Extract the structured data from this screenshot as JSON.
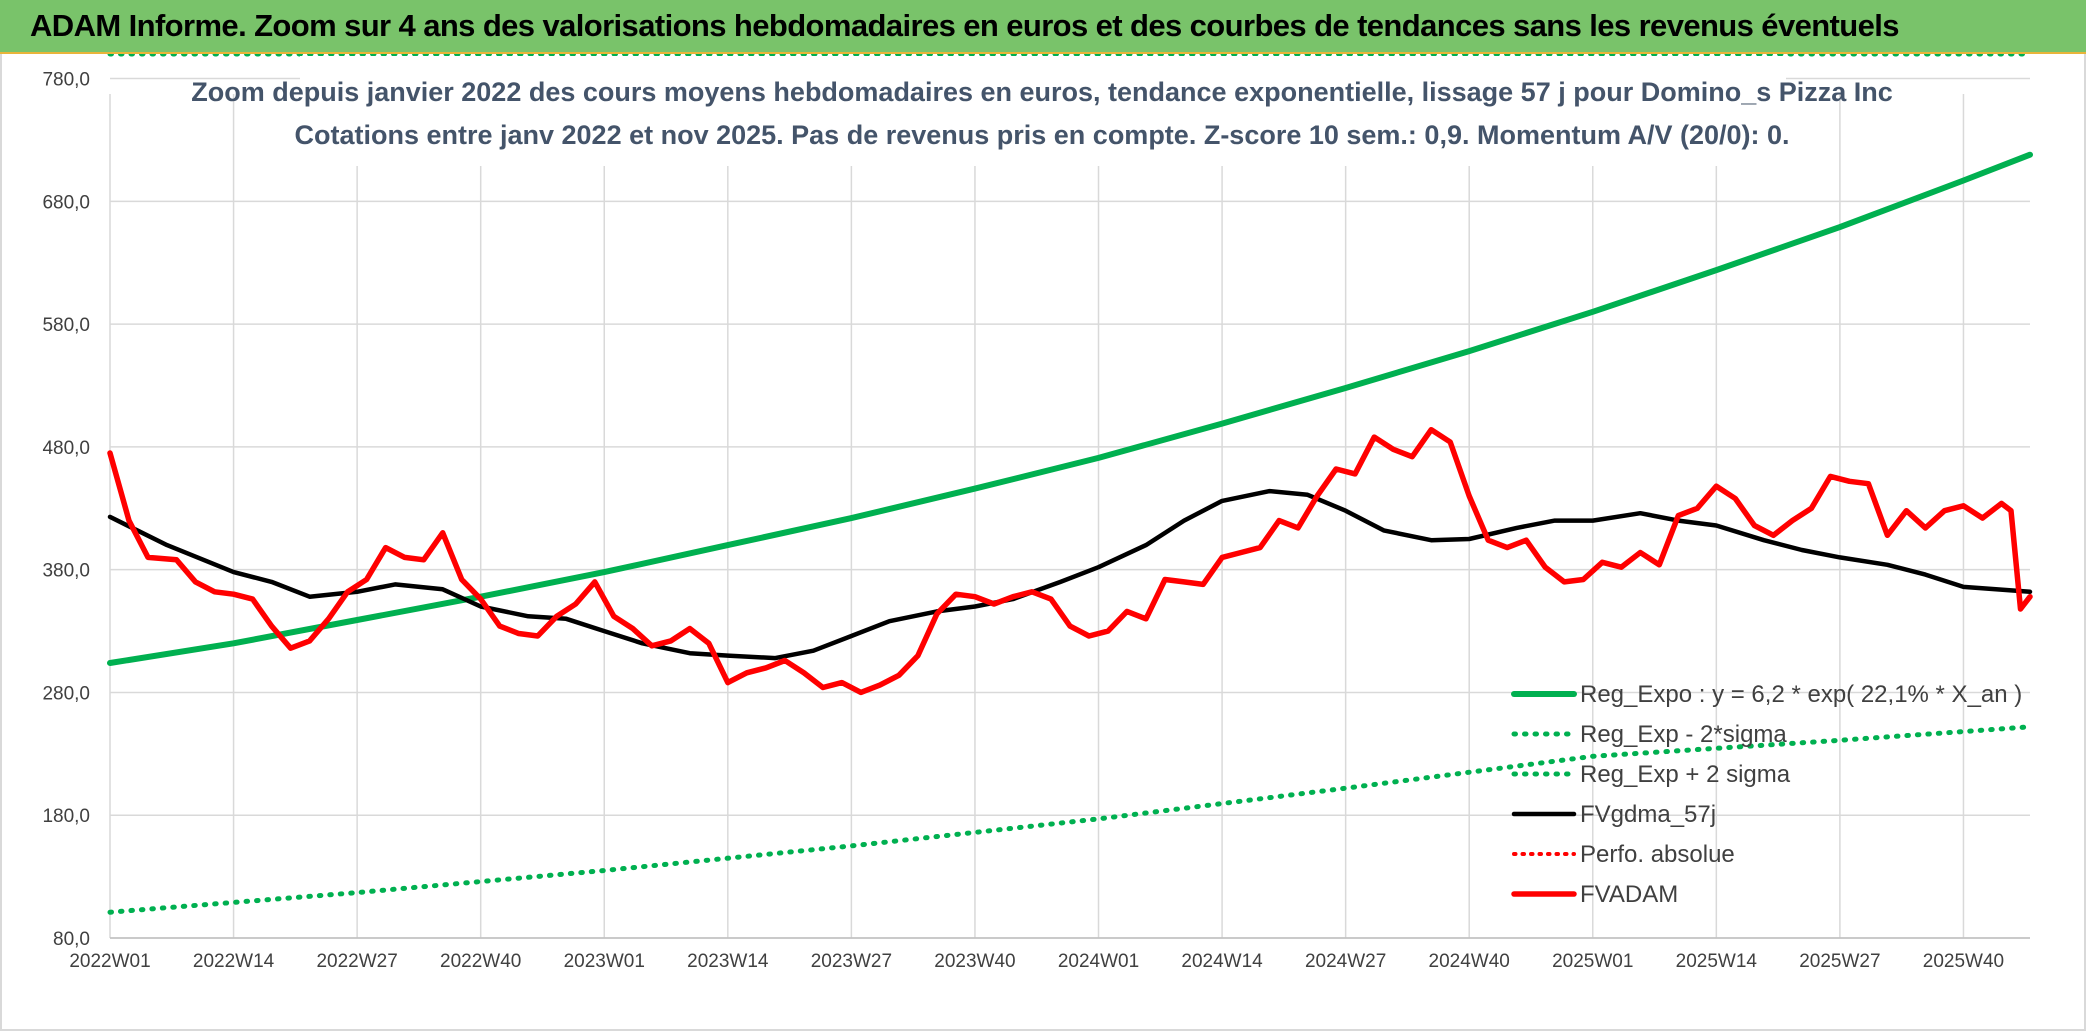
{
  "banner": {
    "title": "ADAM Informe. Zoom sur 4 ans des valorisations hebdomadaires en euros et des courbes de tendances sans les revenus éventuels"
  },
  "chart_data": {
    "type": "line",
    "subtitle_line1": "Zoom depuis janvier 2022 des cours moyens hebdomadaires en euros, tendance exponentielle, lissage 57 j pour Domino_s Pizza Inc",
    "subtitle_line2": "Cotations entre janv 2022 et nov 2025. Pas de revenus pris en compte. Z-score 10 sem.: 0,9. Momentum A/V (20/0): 0.",
    "ylim": [
      80,
      800
    ],
    "yticks": [
      "80,0",
      "180,0",
      "280,0",
      "380,0",
      "480,0",
      "580,0",
      "680,0",
      "780,0"
    ],
    "x_tick_labels": [
      "2022W01",
      "2022W14",
      "2022W27",
      "2022W40",
      "2023W01",
      "2023W14",
      "2023W27",
      "2023W40",
      "2024W01",
      "2024W14",
      "2024W27",
      "2024W40",
      "2025W01",
      "2025W14",
      "2025W27",
      "2025W40"
    ],
    "grid": true,
    "legend_position": "bottom-right",
    "colors": {
      "reg_expo": "#00b050",
      "reg_band": "#00b050",
      "fvgdma": "#000000",
      "perfo": "#ff0000",
      "fvadam": "#ff0000",
      "banner_bg": "#79c36a"
    },
    "series": [
      {
        "name": "Reg_Expo : y = 6,2 * exp( 22,1% *  X_an )",
        "style": "solid-thick",
        "points": [
          [
            0,
            304
          ],
          [
            13,
            320
          ],
          [
            26,
            339
          ],
          [
            39,
            358
          ],
          [
            52,
            378
          ],
          [
            65,
            400
          ],
          [
            78,
            422
          ],
          [
            91,
            446
          ],
          [
            104,
            471
          ],
          [
            117,
            499
          ],
          [
            130,
            528
          ],
          [
            143,
            558
          ],
          [
            156,
            590
          ],
          [
            169,
            624
          ],
          [
            182,
            659
          ],
          [
            195,
            697
          ],
          [
            202,
            718
          ]
        ]
      },
      {
        "name": "Reg_Exp - 2*sigma",
        "style": "dotted",
        "points": [
          [
            0,
            101
          ],
          [
            26,
            117
          ],
          [
            52,
            135
          ],
          [
            78,
            155
          ],
          [
            104,
            177
          ],
          [
            130,
            202
          ],
          [
            156,
            228
          ],
          [
            182,
            241
          ],
          [
            202,
            252
          ]
        ]
      },
      {
        "name": "Reg_Exp + 2 sigma",
        "style": "dotted",
        "points": [
          [
            0,
            800
          ],
          [
            202,
            800
          ]
        ]
      },
      {
        "name": "FVgdma_57j",
        "style": "solid",
        "points": [
          [
            0,
            423
          ],
          [
            6,
            400
          ],
          [
            13,
            378
          ],
          [
            17,
            370
          ],
          [
            21,
            358
          ],
          [
            26,
            362
          ],
          [
            30,
            368
          ],
          [
            35,
            364
          ],
          [
            39,
            350
          ],
          [
            44,
            342
          ],
          [
            48,
            340
          ],
          [
            52,
            330
          ],
          [
            56,
            320
          ],
          [
            61,
            312
          ],
          [
            65,
            310
          ],
          [
            70,
            308
          ],
          [
            74,
            314
          ],
          [
            78,
            326
          ],
          [
            82,
            338
          ],
          [
            87,
            346
          ],
          [
            91,
            350
          ],
          [
            95,
            356
          ],
          [
            100,
            370
          ],
          [
            104,
            382
          ],
          [
            109,
            400
          ],
          [
            113,
            420
          ],
          [
            117,
            436
          ],
          [
            122,
            444
          ],
          [
            126,
            441
          ],
          [
            130,
            428
          ],
          [
            134,
            412
          ],
          [
            139,
            404
          ],
          [
            143,
            405
          ],
          [
            148,
            414
          ],
          [
            152,
            420
          ],
          [
            156,
            420
          ],
          [
            161,
            426
          ],
          [
            165,
            420
          ],
          [
            169,
            416
          ],
          [
            174,
            404
          ],
          [
            178,
            396
          ],
          [
            182,
            390
          ],
          [
            187,
            384
          ],
          [
            191,
            376
          ],
          [
            195,
            366
          ],
          [
            202,
            362
          ]
        ]
      },
      {
        "name": "Perfo. absolue",
        "style": "dotted",
        "points": []
      },
      {
        "name": "FVADAM",
        "style": "solid-thick",
        "points": [
          [
            0,
            475
          ],
          [
            2,
            420
          ],
          [
            4,
            390
          ],
          [
            7,
            388
          ],
          [
            9,
            370
          ],
          [
            11,
            362
          ],
          [
            13,
            360
          ],
          [
            15,
            356
          ],
          [
            17,
            334
          ],
          [
            19,
            316
          ],
          [
            21,
            322
          ],
          [
            23,
            340
          ],
          [
            25,
            362
          ],
          [
            27,
            372
          ],
          [
            29,
            398
          ],
          [
            31,
            390
          ],
          [
            33,
            388
          ],
          [
            35,
            410
          ],
          [
            37,
            372
          ],
          [
            39,
            356
          ],
          [
            41,
            334
          ],
          [
            43,
            328
          ],
          [
            45,
            326
          ],
          [
            47,
            342
          ],
          [
            49,
            352
          ],
          [
            51,
            370
          ],
          [
            53,
            342
          ],
          [
            55,
            332
          ],
          [
            57,
            318
          ],
          [
            59,
            322
          ],
          [
            61,
            332
          ],
          [
            63,
            320
          ],
          [
            65,
            288
          ],
          [
            67,
            296
          ],
          [
            69,
            300
          ],
          [
            71,
            306
          ],
          [
            73,
            296
          ],
          [
            75,
            284
          ],
          [
            77,
            288
          ],
          [
            79,
            280
          ],
          [
            81,
            286
          ],
          [
            83,
            294
          ],
          [
            85,
            310
          ],
          [
            87,
            344
          ],
          [
            89,
            360
          ],
          [
            91,
            358
          ],
          [
            93,
            352
          ],
          [
            95,
            358
          ],
          [
            97,
            362
          ],
          [
            99,
            356
          ],
          [
            101,
            334
          ],
          [
            103,
            326
          ],
          [
            105,
            330
          ],
          [
            107,
            346
          ],
          [
            109,
            340
          ],
          [
            111,
            372
          ],
          [
            113,
            370
          ],
          [
            115,
            368
          ],
          [
            117,
            390
          ],
          [
            119,
            394
          ],
          [
            121,
            398
          ],
          [
            123,
            420
          ],
          [
            125,
            414
          ],
          [
            127,
            440
          ],
          [
            129,
            462
          ],
          [
            131,
            458
          ],
          [
            133,
            488
          ],
          [
            135,
            478
          ],
          [
            137,
            472
          ],
          [
            139,
            494
          ],
          [
            141,
            484
          ],
          [
            143,
            440
          ],
          [
            145,
            404
          ],
          [
            147,
            398
          ],
          [
            149,
            404
          ],
          [
            151,
            382
          ],
          [
            153,
            370
          ],
          [
            155,
            372
          ],
          [
            157,
            386
          ],
          [
            159,
            382
          ],
          [
            161,
            394
          ],
          [
            163,
            384
          ],
          [
            165,
            424
          ],
          [
            167,
            430
          ],
          [
            169,
            448
          ],
          [
            171,
            438
          ],
          [
            173,
            416
          ],
          [
            175,
            408
          ],
          [
            177,
            420
          ],
          [
            179,
            430
          ],
          [
            181,
            456
          ],
          [
            183,
            452
          ],
          [
            185,
            450
          ],
          [
            187,
            408
          ],
          [
            189,
            428
          ],
          [
            191,
            414
          ],
          [
            193,
            428
          ],
          [
            195,
            432
          ],
          [
            197,
            422
          ],
          [
            199,
            434
          ],
          [
            200,
            428
          ],
          [
            201,
            348
          ],
          [
            202,
            358
          ]
        ]
      }
    ]
  }
}
